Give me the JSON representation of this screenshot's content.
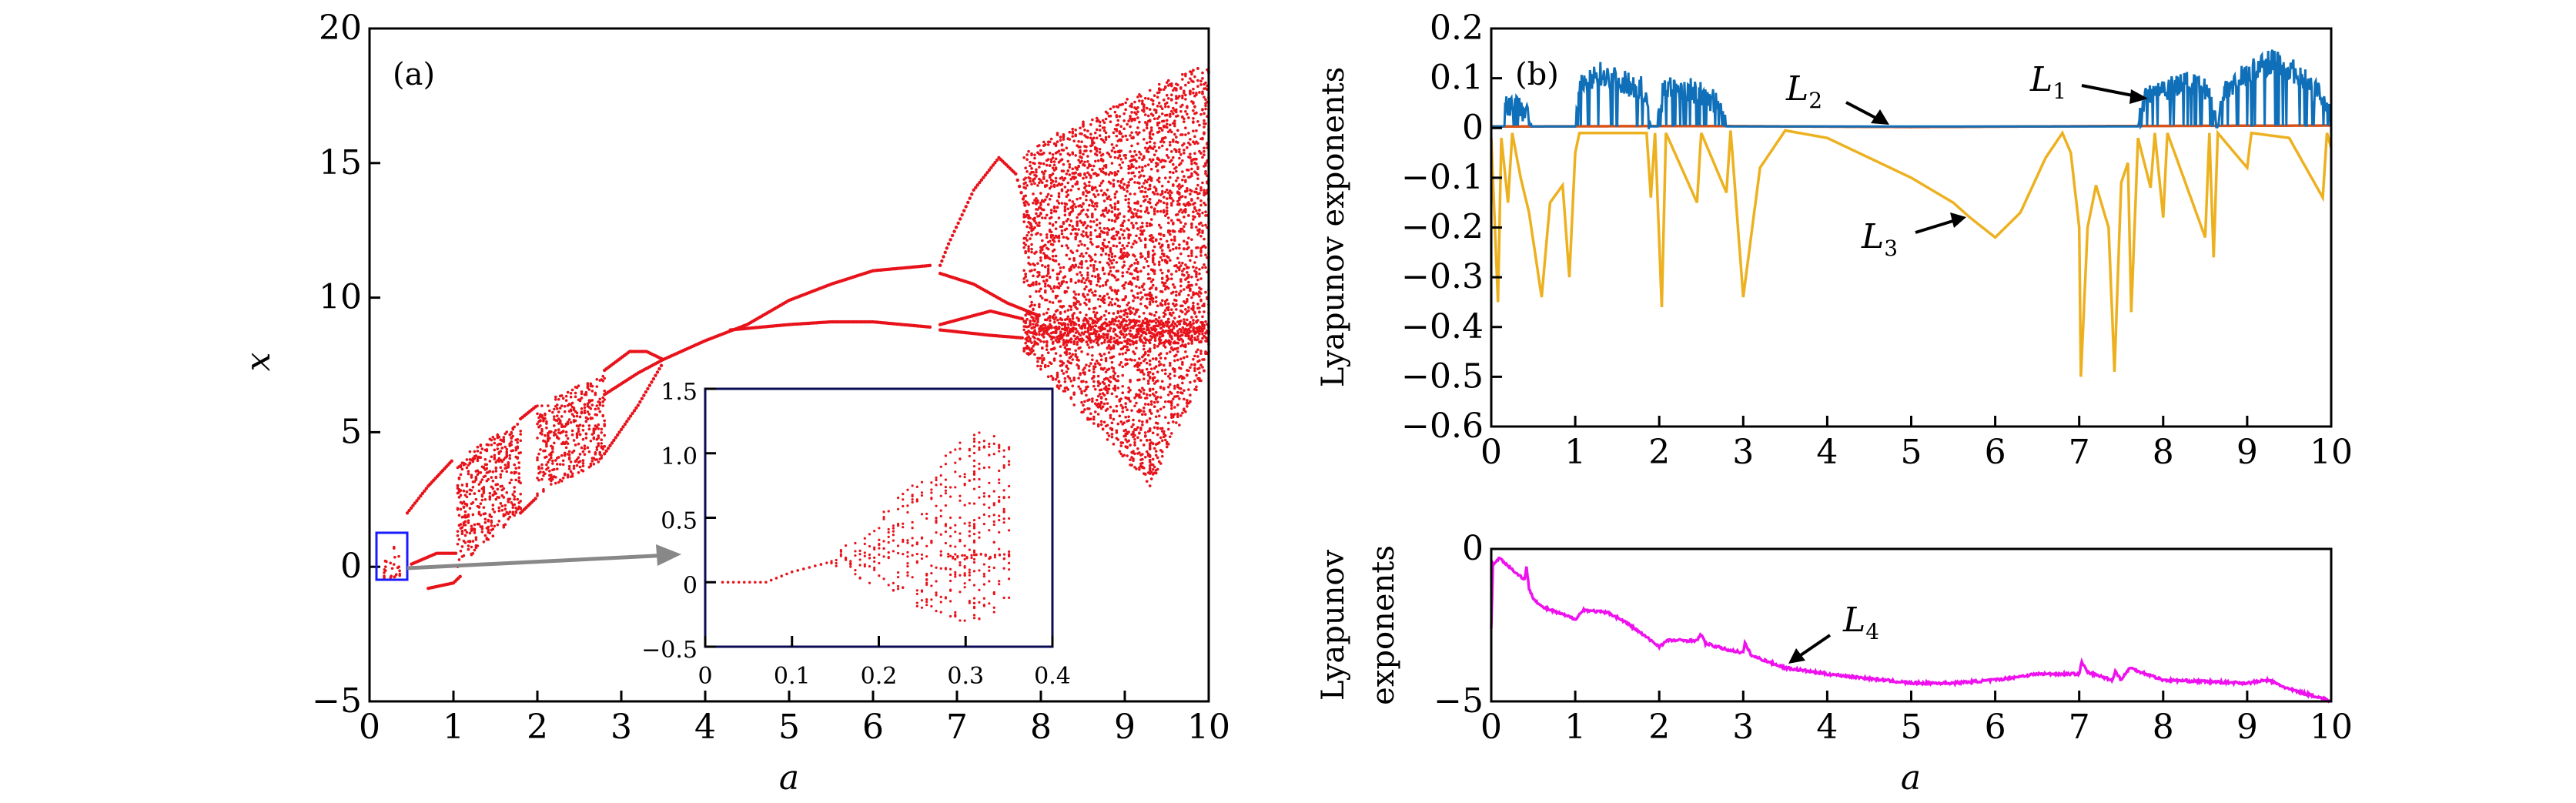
{
  "chart_data": [
    {
      "type": "scatter",
      "panel_label": "(a)",
      "xlabel": "a",
      "ylabel": "x",
      "xlim": [
        0,
        10
      ],
      "ylim": [
        -5,
        20
      ],
      "xticks": [
        "0",
        "1",
        "2",
        "3",
        "4",
        "5",
        "6",
        "7",
        "8",
        "9",
        "10"
      ],
      "yticks": [
        "−5",
        "0",
        "5",
        "10",
        "15",
        "20"
      ],
      "color": "#e8121a",
      "branches": [
        [
          [
            0.45,
            2.0
          ],
          [
            0.7,
            3.0
          ],
          [
            1.0,
            4.0
          ]
        ],
        [
          [
            0.5,
            0.1
          ],
          [
            0.8,
            0.5
          ],
          [
            1.05,
            0.5
          ]
        ],
        [
          [
            0.7,
            -0.8
          ],
          [
            1.0,
            -0.6
          ],
          [
            1.1,
            -0.3
          ]
        ],
        [
          [
            1.8,
            2.0
          ],
          [
            2.0,
            2.6
          ]
        ],
        [
          [
            1.8,
            5.5
          ],
          [
            2.0,
            6.0
          ]
        ],
        [
          [
            2.8,
            7.3
          ],
          [
            3.1,
            8.0
          ],
          [
            3.3,
            8.0
          ],
          [
            3.5,
            7.7
          ]
        ],
        [
          [
            2.8,
            6.4
          ],
          [
            3.2,
            7.2
          ],
          [
            3.5,
            7.7
          ]
        ],
        [
          [
            2.8,
            4.2
          ],
          [
            3.2,
            6.0
          ],
          [
            3.5,
            7.6
          ]
        ],
        [
          [
            3.5,
            7.7
          ],
          [
            4.0,
            8.4
          ],
          [
            4.5,
            9.0
          ],
          [
            5.0,
            9.9
          ],
          [
            5.5,
            10.5
          ],
          [
            6.0,
            11.0
          ],
          [
            6.7,
            11.2
          ]
        ],
        [
          [
            4.3,
            8.8
          ],
          [
            5.0,
            9.0
          ],
          [
            5.5,
            9.1
          ],
          [
            6.0,
            9.1
          ],
          [
            6.7,
            8.9
          ]
        ],
        [
          [
            6.8,
            11.2
          ],
          [
            6.9,
            12.0
          ],
          [
            7.2,
            14.0
          ],
          [
            7.5,
            15.2
          ],
          [
            7.7,
            14.6
          ],
          [
            7.9,
            12.5
          ]
        ],
        [
          [
            6.8,
            10.9
          ],
          [
            7.2,
            10.5
          ],
          [
            7.6,
            9.8
          ],
          [
            8.0,
            9.3
          ]
        ],
        [
          [
            6.8,
            9.0
          ],
          [
            7.4,
            9.5
          ],
          [
            7.8,
            9.2
          ]
        ],
        [
          [
            6.8,
            8.8
          ],
          [
            7.4,
            8.6
          ],
          [
            7.8,
            8.5
          ]
        ]
      ],
      "chaotic_bands": [
        {
          "a": [
            1.05,
            1.8
          ],
          "low": [
            0.0,
            2.0
          ],
          "high": [
            4.0,
            5.5
          ]
        },
        {
          "a": [
            2.0,
            2.8
          ],
          "low": [
            2.6,
            4.0
          ],
          "high": [
            6.0,
            7.2
          ]
        },
        {
          "a": [
            7.8,
            9.3
          ],
          "low": [
            8.0,
            3.0
          ],
          "high": [
            15.5,
            17.8
          ]
        },
        {
          "a": [
            9.3,
            10.0
          ],
          "low": [
            3.0,
            7.5
          ],
          "high": [
            17.8,
            18.7
          ]
        },
        {
          "a": [
            7.8,
            10.0
          ],
          "low": [
            8.3,
            8.3
          ],
          "high": [
            9.3,
            9.1
          ]
        }
      ],
      "inset": {
        "xlim": [
          0,
          0.4
        ],
        "ylim": [
          -0.5,
          1.5
        ],
        "xticks": [
          "0",
          "0.1",
          "0.2",
          "0.3",
          "0.4"
        ],
        "yticks": [
          "−0.5",
          "0",
          "0.5",
          "1.0",
          "1.5"
        ],
        "branches": [
          [
            [
              0.02,
              0.0
            ],
            [
              0.07,
              0.0
            ],
            [
              0.1,
              0.08
            ],
            [
              0.14,
              0.15
            ]
          ]
        ],
        "fans": [
          {
            "a": [
              0.14,
              0.31
            ],
            "low": [
              0.15,
              -0.4
            ],
            "high": [
              0.15,
              1.2
            ]
          },
          {
            "a": [
              0.31,
              0.35
            ],
            "low": [
              -0.35,
              -0.2
            ],
            "high": [
              1.2,
              1.1
            ]
          },
          {
            "a": [
              0.28,
              0.35
            ],
            "low": [
              0.18,
              0.18
            ],
            "high": [
              0.22,
              0.22
            ]
          }
        ],
        "zoom_box_a": [
          0.1,
          0.45
        ],
        "zoom_box_x": [
          -0.5,
          1.5
        ]
      }
    },
    {
      "type": "line",
      "panel_label": "(b)",
      "xlabel": "",
      "ylabel": "Lyapunov exponents",
      "xlim": [
        0,
        10
      ],
      "ylim": [
        -0.6,
        0.2
      ],
      "xticks": [
        "0",
        "1",
        "2",
        "3",
        "4",
        "5",
        "6",
        "7",
        "8",
        "9",
        "10"
      ],
      "yticks": [
        "−0.6",
        "−0.5",
        "−0.4",
        "−0.3",
        "−0.2",
        "−0.1",
        "0",
        "0.1",
        "0.2"
      ],
      "series": [
        {
          "name": "L1",
          "color": "#0f6fb8",
          "points": [
            [
              0,
              0.003
            ],
            [
              0.15,
              0.003
            ],
            [
              0.18,
              0.045
            ],
            [
              0.3,
              0.04
            ],
            [
              0.45,
              0.03
            ],
            [
              0.48,
              0.003
            ],
            [
              1.0,
              0.003
            ],
            [
              1.05,
              0.08
            ],
            [
              1.3,
              0.11
            ],
            [
              1.6,
              0.09
            ],
            [
              1.8,
              0.08
            ],
            [
              1.9,
              0.003
            ],
            [
              1.98,
              0.003
            ],
            [
              2.05,
              0.08
            ],
            [
              2.4,
              0.075
            ],
            [
              2.7,
              0.05
            ],
            [
              2.8,
              0.003
            ],
            [
              7.7,
              0.003
            ],
            [
              7.8,
              0.07
            ],
            [
              8.0,
              0.08
            ],
            [
              8.3,
              0.09
            ],
            [
              8.55,
              0.07
            ],
            [
              8.65,
              0.003
            ],
            [
              8.72,
              0.08
            ],
            [
              9.0,
              0.11
            ],
            [
              9.3,
              0.135
            ],
            [
              9.6,
              0.11
            ],
            [
              10.0,
              0.04
            ]
          ]
        },
        {
          "name": "L2",
          "color": "#d95319",
          "points": [
            [
              0,
              0.003
            ],
            [
              2.5,
              0.004
            ],
            [
              5,
              0.002
            ],
            [
              7.7,
              0.004
            ],
            [
              10,
              0.005
            ]
          ]
        },
        {
          "name": "L3",
          "color": "#edb120",
          "points": [
            [
              0,
              -0.02
            ],
            [
              0.08,
              -0.35
            ],
            [
              0.12,
              -0.02
            ],
            [
              0.2,
              -0.15
            ],
            [
              0.25,
              -0.01
            ],
            [
              0.35,
              -0.1
            ],
            [
              0.45,
              -0.17
            ],
            [
              0.6,
              -0.34
            ],
            [
              0.7,
              -0.15
            ],
            [
              0.85,
              -0.115
            ],
            [
              0.93,
              -0.3
            ],
            [
              1.0,
              -0.05
            ],
            [
              1.05,
              -0.01
            ],
            [
              1.85,
              -0.01
            ],
            [
              1.9,
              -0.14
            ],
            [
              1.95,
              -0.01
            ],
            [
              2.03,
              -0.36
            ],
            [
              2.08,
              -0.01
            ],
            [
              2.45,
              -0.15
            ],
            [
              2.5,
              -0.01
            ],
            [
              2.8,
              -0.13
            ],
            [
              2.85,
              -0.005
            ],
            [
              3.0,
              -0.34
            ],
            [
              3.2,
              -0.08
            ],
            [
              3.5,
              -0.005
            ],
            [
              4.0,
              -0.02
            ],
            [
              4.5,
              -0.06
            ],
            [
              5.0,
              -0.1
            ],
            [
              5.5,
              -0.15
            ],
            [
              5.7,
              -0.18
            ],
            [
              6.0,
              -0.22
            ],
            [
              6.3,
              -0.17
            ],
            [
              6.6,
              -0.06
            ],
            [
              6.8,
              -0.01
            ],
            [
              6.9,
              -0.05
            ],
            [
              7.0,
              -0.2
            ],
            [
              7.02,
              -0.5
            ],
            [
              7.1,
              -0.2
            ],
            [
              7.2,
              -0.115
            ],
            [
              7.35,
              -0.2
            ],
            [
              7.42,
              -0.49
            ],
            [
              7.5,
              -0.11
            ],
            [
              7.58,
              -0.07
            ],
            [
              7.62,
              -0.37
            ],
            [
              7.7,
              -0.02
            ],
            [
              7.85,
              -0.12
            ],
            [
              7.9,
              -0.01
            ],
            [
              8.0,
              -0.18
            ],
            [
              8.05,
              -0.01
            ],
            [
              8.5,
              -0.22
            ],
            [
              8.55,
              -0.01
            ],
            [
              8.6,
              -0.26
            ],
            [
              8.65,
              -0.01
            ],
            [
              9.0,
              -0.08
            ],
            [
              9.05,
              -0.01
            ],
            [
              9.5,
              -0.02
            ],
            [
              9.9,
              -0.14
            ],
            [
              9.95,
              -0.01
            ],
            [
              10.0,
              -0.04
            ]
          ]
        }
      ],
      "annotations": [
        "L1",
        "L2",
        "L3"
      ]
    },
    {
      "type": "line",
      "xlabel": "a",
      "ylabel": [
        "Lyapunov",
        "exponents"
      ],
      "xlim": [
        0,
        10
      ],
      "ylim": [
        -5,
        0
      ],
      "xticks": [
        "0",
        "1",
        "2",
        "3",
        "4",
        "5",
        "6",
        "7",
        "8",
        "9",
        "10"
      ],
      "yticks": [
        "−5",
        "0"
      ],
      "series": [
        {
          "name": "L4",
          "color": "#ee11ee",
          "points": [
            [
              0,
              -2.6
            ],
            [
              0.02,
              -0.5
            ],
            [
              0.1,
              -0.3
            ],
            [
              0.3,
              -0.8
            ],
            [
              0.4,
              -1.0
            ],
            [
              0.42,
              -0.6
            ],
            [
              0.45,
              -1.3
            ],
            [
              0.5,
              -1.6
            ],
            [
              0.6,
              -1.9
            ],
            [
              1.0,
              -2.3
            ],
            [
              1.1,
              -2.0
            ],
            [
              1.4,
              -2.1
            ],
            [
              1.6,
              -2.4
            ],
            [
              2.0,
              -3.2
            ],
            [
              2.1,
              -3.0
            ],
            [
              2.45,
              -3.0
            ],
            [
              2.5,
              -2.8
            ],
            [
              2.55,
              -3.1
            ],
            [
              2.8,
              -3.3
            ],
            [
              3.0,
              -3.4
            ],
            [
              3.02,
              -3.1
            ],
            [
              3.1,
              -3.5
            ],
            [
              3.5,
              -3.9
            ],
            [
              4.0,
              -4.1
            ],
            [
              5.0,
              -4.4
            ],
            [
              5.5,
              -4.4
            ],
            [
              6.0,
              -4.3
            ],
            [
              6.5,
              -4.1
            ],
            [
              7.0,
              -4.1
            ],
            [
              7.03,
              -3.7
            ],
            [
              7.1,
              -4.05
            ],
            [
              7.4,
              -4.3
            ],
            [
              7.43,
              -4.0
            ],
            [
              7.5,
              -4.3
            ],
            [
              7.6,
              -3.9
            ],
            [
              8.0,
              -4.3
            ],
            [
              9.0,
              -4.4
            ],
            [
              9.25,
              -4.3
            ],
            [
              9.5,
              -4.6
            ],
            [
              9.9,
              -4.9
            ],
            [
              10.0,
              -5.0
            ]
          ]
        }
      ],
      "annotations": [
        "L4"
      ]
    }
  ]
}
